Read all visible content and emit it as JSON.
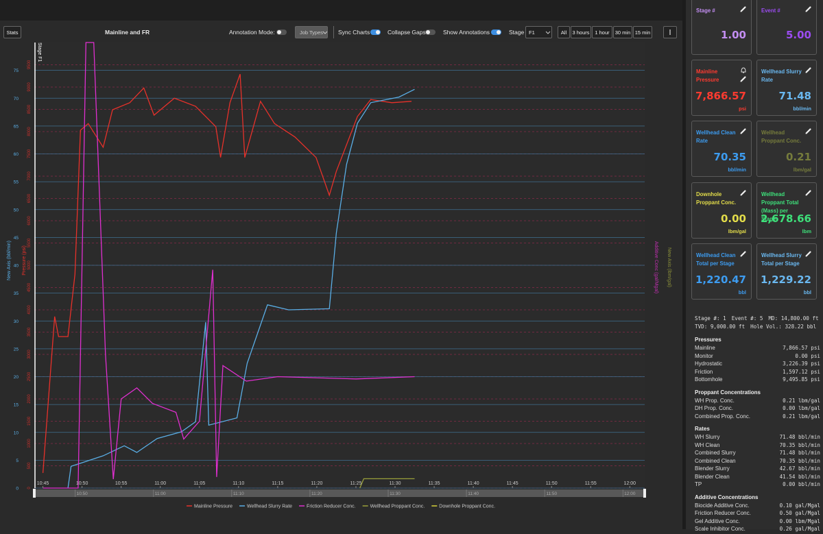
{
  "toolbar": {
    "stats": "Stats",
    "annotation_mode": "Annotation Mode:",
    "job_types": "Job Types",
    "sync_charts": "Sync Charts",
    "collapse_gaps": "Collapse Gaps",
    "show_annotations": "Show Annotations",
    "stage": "Stage",
    "stage_value": "F1",
    "ranges": [
      "All",
      "3 hours",
      "1 hour",
      "30 min",
      "15 min"
    ]
  },
  "chart_data": {
    "type": "line",
    "title": "Mainline and FR",
    "y_label": "New Axis (bbl/min)",
    "p_label": "Pressure (psi)",
    "y2_label": "Additive Conc (gal/Mgal)",
    "y4_label": "New Axis (lbm/gal)",
    "stage_marker": "Stage F1",
    "xlim": [
      -1.1,
      76.9
    ],
    "xticks": [
      {
        "value": 0,
        "label": "10:45"
      },
      {
        "value": 5,
        "label": "10:50"
      },
      {
        "value": 10,
        "label": "10:55"
      },
      {
        "value": 15,
        "label": "11:00"
      },
      {
        "value": 20,
        "label": "11:05"
      },
      {
        "value": 25,
        "label": "11:10"
      },
      {
        "value": 30,
        "label": "11:15"
      },
      {
        "value": 35,
        "label": "11:20"
      },
      {
        "value": 40,
        "label": "11:25"
      },
      {
        "value": 45,
        "label": "11:30"
      },
      {
        "value": 50,
        "label": "11:35"
      },
      {
        "value": 55,
        "label": "11:40"
      },
      {
        "value": 60,
        "label": "11:45"
      },
      {
        "value": 65,
        "label": "11:50"
      },
      {
        "value": 70,
        "label": "11:55"
      },
      {
        "value": 75,
        "label": "12:00"
      }
    ],
    "scrubber_ticks": [
      {
        "value": 5,
        "label": "10:50"
      },
      {
        "value": 15,
        "label": "11:00"
      },
      {
        "value": 25,
        "label": "11:10"
      },
      {
        "value": 35,
        "label": "11:20"
      },
      {
        "value": 45,
        "label": "11:30"
      },
      {
        "value": 55,
        "label": "11:40"
      },
      {
        "value": 65,
        "label": "11:50"
      },
      {
        "value": 75,
        "label": "12:00"
      }
    ],
    "ylim": [
      0,
      80
    ],
    "yticks": [
      0,
      5,
      10,
      15,
      20,
      25,
      30,
      35,
      40,
      45,
      50,
      55,
      60,
      65,
      70,
      75
    ],
    "plim": [
      0,
      10000
    ],
    "pticks": [
      0,
      500,
      1000,
      1500,
      2000,
      2500,
      3000,
      3500,
      4000,
      4500,
      5000,
      5500,
      6000,
      6500,
      7000,
      7500,
      8000,
      8500,
      9000,
      9500
    ],
    "y2lim": [
      0,
      2
    ],
    "y4lim": [
      0,
      10
    ],
    "grid": true,
    "series": [
      {
        "name": "Mainline Pressure",
        "color": "#e8312a",
        "axis": "pressure",
        "x": [
          0,
          1.5,
          2,
          3.2,
          4.1,
          4.8,
          5.8,
          7.7,
          8.9,
          11.1,
          12.9,
          14.2,
          16.8,
          19.5,
          22.1,
          22.7,
          23.9,
          25.2,
          25.8,
          27.8,
          29.6,
          32.2,
          34.9,
          36.6,
          37.5,
          40.2,
          41.9,
          44.6,
          47.1
        ],
        "values": [
          340,
          3850,
          3400,
          3400,
          4800,
          8030,
          8180,
          7650,
          8490,
          8650,
          8980,
          8370,
          8750,
          8570,
          8110,
          7420,
          8650,
          9290,
          7420,
          8680,
          8180,
          7880,
          7420,
          6570,
          7110,
          8340,
          8720,
          8650,
          8680
        ]
      },
      {
        "name": "Wellhead Slurry Rate",
        "color": "#5aaee6",
        "axis": "y",
        "x": [
          3.2,
          3.6,
          7.7,
          10.4,
          12.0,
          14.6,
          17.7,
          19.5,
          20.8,
          21.2,
          24.8,
          26.1,
          28.7,
          31.4,
          36.6,
          37.5,
          38.8,
          40.2,
          41.9,
          45.5,
          47.5
        ],
        "values": [
          0,
          3.9,
          5.8,
          7.6,
          6.4,
          8.9,
          10.1,
          11.9,
          29.8,
          11.3,
          12.6,
          22.4,
          32.9,
          32.0,
          32.2,
          45.8,
          58.1,
          65.5,
          69.2,
          70.2,
          71.6
        ]
      },
      {
        "name": "Friction Reducer Conc.",
        "color": "#e02fd0",
        "axis": "y2",
        "x": [
          0,
          4.5,
          5.5,
          6.5,
          8,
          9,
          10,
          12,
          14,
          17,
          18,
          20,
          21.7,
          22.2,
          23,
          26,
          30,
          40,
          47.5
        ],
        "values": [
          0,
          0,
          2.0,
          2.0,
          0.6,
          0.04,
          0.4,
          0.45,
          0.38,
          0.34,
          0.22,
          0.3,
          0.98,
          0.05,
          0.55,
          0.48,
          0.5,
          0.49,
          0.5
        ]
      },
      {
        "name": "Wellhead Proppant Conc.",
        "color": "#9aa03a",
        "axis": "y4",
        "x": [
          40.5,
          41,
          47.5
        ],
        "values": [
          0,
          0.21,
          0.21
        ]
      },
      {
        "name": "Downhole Proppant Conc.",
        "color": "#d8d23a",
        "axis": "y4",
        "x": [],
        "values": []
      }
    ]
  },
  "cards": [
    {
      "title": "Stage #",
      "value": "1.00",
      "unit": null,
      "color": "#c38ef2"
    },
    {
      "title": "Event #",
      "value": "5.00",
      "unit": null,
      "color": "#9b4cf0"
    },
    {
      "title": "Mainline Pressure",
      "value": "7,866.57",
      "unit": "psi",
      "color": "#ff3b30"
    },
    {
      "title": "Wellhead Slurry Rate",
      "value": "71.48",
      "unit": "bbl/min",
      "color": "#6ab8f0"
    },
    {
      "title": "Wellhead Clean Rate",
      "value": "70.35",
      "unit": "bbl/min",
      "color": "#3d9cf0"
    },
    {
      "title": "Wellhead Proppant Conc.",
      "value": "0.21",
      "unit": "lbm/gal",
      "color": "#767c3c"
    },
    {
      "title": "Downhole Proppant Conc.",
      "value": "0.00",
      "unit": "lbm/gal",
      "color": "#e3dd4a"
    },
    {
      "title": "Wellhead Proppant Total (Mass) per Stage",
      "value": "2,678.66",
      "unit": "lbm",
      "color": "#3ee07a"
    },
    {
      "title": "Wellhead Clean Total per Stage",
      "value": "1,220.47",
      "unit": "bbl",
      "color": "#3d9cf0"
    },
    {
      "title": "Wellhead Slurry Total per Stage",
      "value": "1,229.22",
      "unit": "bbl",
      "color": "#6ab8f0"
    }
  ],
  "info": {
    "summary": [
      [
        "Stage #: 1",
        "Event #: 5",
        "MD: 14,800.00 ft"
      ],
      [
        "TVD: 9,000.00 ft",
        "Hole Vol.: 328.22 bbl"
      ]
    ],
    "sections": [
      {
        "title": "Pressures",
        "rows": [
          [
            "Mainline",
            "7,866.57 psi"
          ],
          [
            "Monitor",
            "0.00 psi"
          ],
          [
            "Hydrostatic",
            "3,226.39 psi"
          ],
          [
            "Friction",
            "1,597.12 psi"
          ],
          [
            "Bottomhole",
            "9,495.85 psi"
          ]
        ]
      },
      {
        "title": "Proppant Concentrations",
        "rows": [
          [
            "WH Prop. Conc.",
            "0.21 lbm/gal"
          ],
          [
            "DH Prop. Conc.",
            "0.00 lbm/gal"
          ],
          [
            "Combined Prop. Conc.",
            "0.21 lbm/gal"
          ]
        ]
      },
      {
        "title": "Rates",
        "rows": [
          [
            "WH Slurry",
            "71.48 bbl/min"
          ],
          [
            "WH Clean",
            "70.35 bbl/min"
          ],
          [
            "Combined Slurry",
            "71.48 bbl/min"
          ],
          [
            "Combined Clean",
            "70.35 bbl/min"
          ],
          [
            "Blender Slurry",
            "42.67 bbl/min"
          ],
          [
            "Blender Clean",
            "41.54 bbl/min"
          ],
          [
            "TP",
            "0.00 bbl/min"
          ]
        ]
      },
      {
        "title": "Additive Concentrations",
        "rows": [
          [
            "Biocide Additive Conc.",
            "0.10 gal/Mgal"
          ],
          [
            "Friction Reducer Conc.",
            "0.50 gal/Mgal"
          ],
          [
            "Gel Additive Conc.",
            "0.00 lbm/Mgal"
          ],
          [
            "Scale Inhibitor Conc.",
            "0.26 gal/Mgal"
          ]
        ]
      }
    ]
  }
}
